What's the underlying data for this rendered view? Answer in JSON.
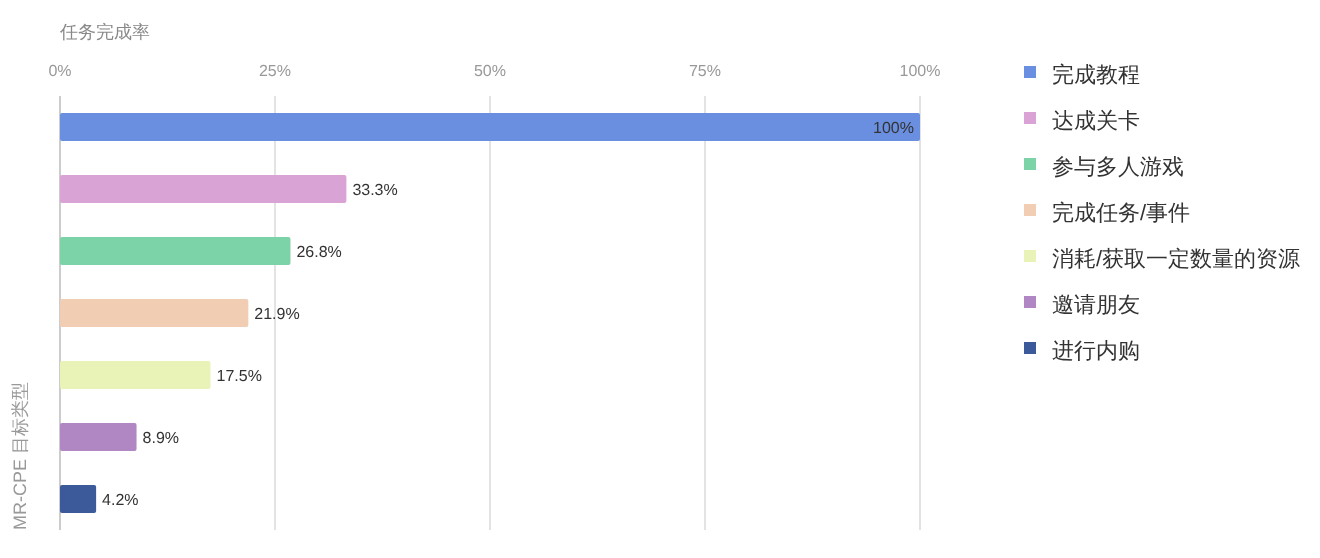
{
  "chart_data": {
    "type": "bar",
    "orientation": "horizontal",
    "xlabel": "任务完成率",
    "ylabel": "MR-CPE 目标类型",
    "categories": [
      null,
      null,
      null,
      null,
      null,
      null,
      null
    ],
    "series": [
      {
        "name": "完成教程",
        "color": "#6a8fe0",
        "values": [
          100,
          null,
          null,
          null,
          null,
          null,
          null
        ],
        "value_labels": [
          "100%",
          null,
          null,
          null,
          null,
          null,
          null
        ]
      },
      {
        "name": "达成关卡",
        "color": "#d9a3d6",
        "values": [
          null,
          33.3,
          null,
          null,
          null,
          null,
          null
        ],
        "value_labels": [
          null,
          "33.3%",
          null,
          null,
          null,
          null,
          null
        ]
      },
      {
        "name": "参与多人游戏",
        "color": "#7dd3a8",
        "values": [
          null,
          null,
          26.8,
          null,
          null,
          null,
          null
        ],
        "value_labels": [
          null,
          null,
          "26.8%",
          null,
          null,
          null,
          null
        ]
      },
      {
        "name": "完成任务/事件",
        "color": "#f1cdb4",
        "values": [
          null,
          null,
          null,
          21.9,
          null,
          null,
          null
        ],
        "value_labels": [
          null,
          null,
          null,
          "21.9%",
          null,
          null,
          null
        ]
      },
      {
        "name": "消耗/获取一定数量的资源",
        "color": "#e9f3b8",
        "values": [
          null,
          null,
          null,
          null,
          17.5,
          null,
          null
        ],
        "value_labels": [
          null,
          null,
          null,
          null,
          "17.5%",
          null,
          null
        ]
      },
      {
        "name": "邀请朋友",
        "color": "#b087c3",
        "values": [
          null,
          null,
          null,
          null,
          null,
          8.9,
          null
        ],
        "value_labels": [
          null,
          null,
          null,
          null,
          null,
          "8.9%",
          null
        ]
      },
      {
        "name": "进行内购",
        "color": "#3c5a9a",
        "values": [
          null,
          null,
          null,
          null,
          null,
          null,
          4.2
        ],
        "value_labels": [
          null,
          null,
          null,
          null,
          null,
          null,
          "4.2%"
        ]
      }
    ],
    "xlim": [
      0,
      100
    ],
    "xticks": [
      {
        "value": 0,
        "label": "0%"
      },
      {
        "value": 25,
        "label": "25%"
      },
      {
        "value": 50,
        "label": "50%"
      },
      {
        "value": 75,
        "label": "75%"
      },
      {
        "value": 100,
        "label": "100%"
      }
    ],
    "grid": "x",
    "legend": "right"
  }
}
